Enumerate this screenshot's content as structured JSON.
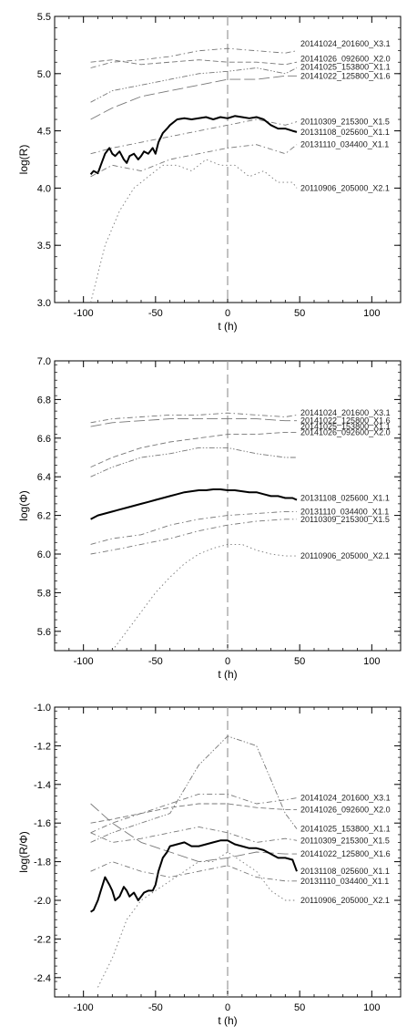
{
  "chart_data": [
    {
      "type": "line",
      "xlabel": "t (h)",
      "ylabel": "log(R)",
      "xlim": [
        -120,
        120
      ],
      "ylim": [
        3.0,
        5.5
      ],
      "xticks": [
        "-100",
        "-50",
        "0",
        "50",
        "100"
      ],
      "yticks": [
        "3.0",
        "3.5",
        "4.0",
        "4.5",
        "5.0",
        "5.5"
      ],
      "ytick_values": [
        3.0,
        3.5,
        4.0,
        4.5,
        5.0,
        5.5
      ],
      "series": [
        {
          "name": "20141024_201600_X3.1",
          "style": "dashdot",
          "label_y": 5.26,
          "x": [
            -95,
            -80,
            -60,
            -40,
            -20,
            0,
            20,
            40,
            48
          ],
          "y": [
            5.05,
            5.1,
            5.12,
            5.15,
            5.2,
            5.22,
            5.2,
            5.18,
            5.2
          ]
        },
        {
          "name": "20141026_092600_X2.0",
          "style": "dash",
          "label_y": 5.13,
          "x": [
            -95,
            -80,
            -60,
            -40,
            -20,
            0,
            20,
            40,
            48
          ],
          "y": [
            5.1,
            5.12,
            5.08,
            5.1,
            5.12,
            5.1,
            5.1,
            5.08,
            5.1
          ]
        },
        {
          "name": "20141025_153800_X1.1",
          "style": "dashdotdot",
          "label_y": 5.06,
          "x": [
            -95,
            -80,
            -60,
            -40,
            -20,
            0,
            20,
            40,
            48
          ],
          "y": [
            4.75,
            4.85,
            4.9,
            4.95,
            5.0,
            5.02,
            5.05,
            5.0,
            5.05
          ]
        },
        {
          "name": "20141022_125800_X1.6",
          "style": "longdash",
          "label_y": 4.98,
          "x": [
            -95,
            -80,
            -60,
            -40,
            -20,
            0,
            20,
            40,
            48
          ],
          "y": [
            4.6,
            4.7,
            4.8,
            4.85,
            4.9,
            4.95,
            4.95,
            4.98,
            4.98
          ]
        },
        {
          "name": "20110309_215300_X1.5",
          "style": "dashdot",
          "label_y": 4.58,
          "x": [
            -95,
            -80,
            -60,
            -40,
            -20,
            0,
            20,
            40,
            48
          ],
          "y": [
            4.3,
            4.35,
            4.4,
            4.45,
            4.5,
            4.55,
            4.6,
            4.55,
            4.58
          ]
        },
        {
          "name": "20131108_025600_X1.1",
          "style": "solid",
          "label_y": 4.49,
          "x": [
            -95,
            -93,
            -90,
            -88,
            -85,
            -82,
            -80,
            -78,
            -75,
            -72,
            -70,
            -68,
            -65,
            -62,
            -60,
            -58,
            -55,
            -52,
            -50,
            -48,
            -45,
            -42,
            -40,
            -35,
            -30,
            -25,
            -20,
            -15,
            -10,
            -5,
            0,
            5,
            10,
            15,
            20,
            25,
            30,
            35,
            40,
            45,
            48
          ],
          "y": [
            4.12,
            4.15,
            4.13,
            4.2,
            4.3,
            4.35,
            4.3,
            4.28,
            4.32,
            4.25,
            4.22,
            4.28,
            4.3,
            4.25,
            4.28,
            4.32,
            4.3,
            4.35,
            4.3,
            4.4,
            4.48,
            4.52,
            4.55,
            4.6,
            4.61,
            4.6,
            4.61,
            4.62,
            4.6,
            4.62,
            4.61,
            4.63,
            4.62,
            4.61,
            4.62,
            4.6,
            4.55,
            4.52,
            4.52,
            4.5,
            4.49
          ]
        },
        {
          "name": "20131110_034400_X1.1",
          "style": "dashdot",
          "label_y": 4.38,
          "x": [
            -95,
            -80,
            -60,
            -40,
            -20,
            0,
            20,
            40,
            48
          ],
          "y": [
            4.1,
            4.2,
            4.15,
            4.25,
            4.3,
            4.35,
            4.38,
            4.3,
            4.38
          ]
        },
        {
          "name": "20110906_205000_X2.1",
          "style": "dot",
          "label_y": 4.0,
          "x": [
            -95,
            -85,
            -75,
            -65,
            -55,
            -45,
            -35,
            -25,
            -15,
            -5,
            5,
            15,
            25,
            35,
            45,
            48
          ],
          "y": [
            3.0,
            3.5,
            3.8,
            4.0,
            4.1,
            4.2,
            4.2,
            4.15,
            4.25,
            4.2,
            4.2,
            4.1,
            4.15,
            4.05,
            4.05,
            4.0
          ]
        }
      ],
      "vline": 0
    },
    {
      "type": "line",
      "xlabel": "t (h)",
      "ylabel": "log(Φ)",
      "xlim": [
        -120,
        120
      ],
      "ylim": [
        5.5,
        7.0
      ],
      "xticks": [
        "-100",
        "-50",
        "0",
        "50",
        "100"
      ],
      "yticks": [
        "5.6",
        "5.8",
        "6.0",
        "6.2",
        "6.4",
        "6.6",
        "6.8",
        "7.0"
      ],
      "ytick_values": [
        5.6,
        5.8,
        6.0,
        6.2,
        6.4,
        6.6,
        6.8,
        7.0
      ],
      "series": [
        {
          "name": "20141024_201600_X3.1",
          "style": "dashdot",
          "label_y": 6.73,
          "x": [
            -95,
            -80,
            -60,
            -40,
            -20,
            0,
            20,
            40,
            48
          ],
          "y": [
            6.68,
            6.7,
            6.71,
            6.72,
            6.72,
            6.73,
            6.72,
            6.71,
            6.72
          ]
        },
        {
          "name": "20141022_125800_X1.6",
          "style": "longdash",
          "label_y": 6.69,
          "x": [
            -95,
            -80,
            -60,
            -40,
            -20,
            0,
            20,
            40,
            48
          ],
          "y": [
            6.66,
            6.68,
            6.69,
            6.7,
            6.7,
            6.7,
            6.7,
            6.69,
            6.69
          ]
        },
        {
          "name": "20141025_153800_X1.1",
          "style": "dashdotdot",
          "label_y": 6.66,
          "x": [
            -95,
            -80,
            -60,
            -40,
            -20,
            0,
            20,
            40,
            48
          ],
          "y": [
            6.4,
            6.45,
            6.5,
            6.52,
            6.55,
            6.55,
            6.52,
            6.5,
            6.5
          ]
        },
        {
          "name": "20141026_092600_X2.0",
          "style": "dash",
          "label_y": 6.63,
          "x": [
            -95,
            -80,
            -60,
            -40,
            -20,
            0,
            20,
            40,
            48
          ],
          "y": [
            6.45,
            6.5,
            6.55,
            6.58,
            6.6,
            6.62,
            6.62,
            6.63,
            6.63
          ]
        },
        {
          "name": "20131108_025600_X1.1",
          "style": "solid",
          "label_y": 6.29,
          "x": [
            -95,
            -90,
            -85,
            -80,
            -75,
            -70,
            -65,
            -60,
            -55,
            -50,
            -45,
            -40,
            -35,
            -30,
            -25,
            -20,
            -15,
            -10,
            -5,
            0,
            5,
            10,
            15,
            20,
            25,
            30,
            35,
            40,
            45,
            48
          ],
          "y": [
            6.18,
            6.2,
            6.21,
            6.22,
            6.23,
            6.24,
            6.25,
            6.26,
            6.27,
            6.28,
            6.29,
            6.3,
            6.31,
            6.32,
            6.325,
            6.33,
            6.33,
            6.335,
            6.335,
            6.33,
            6.33,
            6.325,
            6.32,
            6.32,
            6.31,
            6.3,
            6.3,
            6.29,
            6.29,
            6.28
          ]
        },
        {
          "name": "20131110_034400_X1.1",
          "style": "dashdot",
          "label_y": 6.22,
          "x": [
            -95,
            -80,
            -60,
            -40,
            -20,
            0,
            20,
            40,
            48
          ],
          "y": [
            6.05,
            6.08,
            6.1,
            6.15,
            6.18,
            6.2,
            6.21,
            6.22,
            6.22
          ]
        },
        {
          "name": "20110309_215300_X1.5",
          "style": "dashdot",
          "label_y": 6.18,
          "x": [
            -95,
            -80,
            -60,
            -40,
            -20,
            0,
            20,
            40,
            48
          ],
          "y": [
            6.0,
            6.02,
            6.05,
            6.08,
            6.12,
            6.15,
            6.17,
            6.18,
            6.18
          ]
        },
        {
          "name": "20110906_205000_X2.1",
          "style": "dot",
          "label_y": 5.99,
          "x": [
            -80,
            -70,
            -60,
            -50,
            -40,
            -30,
            -20,
            -10,
            0,
            10,
            20,
            30,
            40,
            48
          ],
          "y": [
            5.5,
            5.6,
            5.7,
            5.8,
            5.88,
            5.95,
            6.0,
            6.03,
            6.05,
            6.05,
            6.02,
            6.0,
            5.99,
            5.99
          ]
        }
      ],
      "vline": 0
    },
    {
      "type": "line",
      "xlabel": "t (h)",
      "ylabel": "log(R/Φ)",
      "xlim": [
        -120,
        120
      ],
      "ylim": [
        -2.5,
        -1.0
      ],
      "xticks": [
        "-100",
        "-50",
        "0",
        "50",
        "100"
      ],
      "yticks": [
        "-2.4",
        "-2.2",
        "-2.0",
        "-1.8",
        "-1.6",
        "-1.4",
        "-1.2",
        "-1.0"
      ],
      "ytick_values": [
        -2.4,
        -2.2,
        -2.0,
        -1.8,
        -1.6,
        -1.4,
        -1.2,
        -1.0
      ],
      "series": [
        {
          "name": "20141024_201600_X3.1",
          "style": "dashdot",
          "label_y": -1.47,
          "x": [
            -95,
            -80,
            -60,
            -40,
            -20,
            0,
            20,
            40,
            48
          ],
          "y": [
            -1.65,
            -1.6,
            -1.55,
            -1.5,
            -1.45,
            -1.45,
            -1.5,
            -1.48,
            -1.47
          ]
        },
        {
          "name": "20141026_092600_X2.0",
          "style": "dash",
          "label_y": -1.53,
          "x": [
            -95,
            -80,
            -60,
            -40,
            -20,
            0,
            20,
            40,
            48
          ],
          "y": [
            -1.6,
            -1.58,
            -1.55,
            -1.52,
            -1.5,
            -1.5,
            -1.52,
            -1.53,
            -1.53
          ]
        },
        {
          "name": "20141025_153800_X1.1",
          "style": "dashdotdot",
          "label_y": -1.63,
          "x": [
            -95,
            -80,
            -60,
            -40,
            -20,
            0,
            20,
            40,
            48
          ],
          "y": [
            -1.7,
            -1.65,
            -1.6,
            -1.55,
            -1.3,
            -1.15,
            -1.2,
            -1.55,
            -1.63
          ]
        },
        {
          "name": "20110309_215300_X1.5",
          "style": "dashdot",
          "label_y": -1.69,
          "x": [
            -95,
            -80,
            -60,
            -40,
            -20,
            0,
            20,
            40,
            48
          ],
          "y": [
            -1.65,
            -1.7,
            -1.68,
            -1.65,
            -1.62,
            -1.65,
            -1.7,
            -1.68,
            -1.69
          ]
        },
        {
          "name": "20141022_125800_X1.6",
          "style": "longdash",
          "label_y": -1.76,
          "x": [
            -95,
            -80,
            -60,
            -40,
            -20,
            0,
            20,
            40,
            48
          ],
          "y": [
            -1.5,
            -1.6,
            -1.7,
            -1.75,
            -1.8,
            -1.78,
            -1.75,
            -1.76,
            -1.76
          ]
        },
        {
          "name": "20131108_025600_X1.1",
          "style": "solid",
          "label_y": -1.85,
          "x": [
            -95,
            -93,
            -90,
            -88,
            -85,
            -82,
            -80,
            -78,
            -75,
            -72,
            -70,
            -68,
            -65,
            -62,
            -60,
            -58,
            -55,
            -52,
            -50,
            -48,
            -45,
            -42,
            -40,
            -35,
            -30,
            -25,
            -20,
            -15,
            -10,
            -5,
            0,
            5,
            10,
            15,
            20,
            25,
            30,
            35,
            40,
            45,
            48
          ],
          "y": [
            -2.06,
            -2.05,
            -2.0,
            -1.95,
            -1.88,
            -1.92,
            -1.95,
            -2.0,
            -1.98,
            -1.93,
            -1.95,
            -1.98,
            -1.96,
            -2.0,
            -1.98,
            -1.96,
            -1.95,
            -1.95,
            -1.92,
            -1.85,
            -1.78,
            -1.75,
            -1.72,
            -1.71,
            -1.7,
            -1.72,
            -1.72,
            -1.71,
            -1.7,
            -1.69,
            -1.69,
            -1.71,
            -1.72,
            -1.73,
            -1.73,
            -1.74,
            -1.76,
            -1.78,
            -1.78,
            -1.79,
            -1.85
          ]
        },
        {
          "name": "20131110_034400_X1.1",
          "style": "dashdot",
          "label_y": -1.9,
          "x": [
            -95,
            -80,
            -60,
            -40,
            -20,
            0,
            20,
            40,
            48
          ],
          "y": [
            -1.85,
            -1.8,
            -1.85,
            -1.88,
            -1.85,
            -1.82,
            -1.88,
            -1.9,
            -1.9
          ]
        },
        {
          "name": "20110906_205000_X2.1",
          "style": "dot",
          "label_y": -2.0,
          "x": [
            -90,
            -80,
            -70,
            -60,
            -50,
            -40,
            -30,
            -20,
            -10,
            0,
            10,
            20,
            30,
            40,
            48
          ],
          "y": [
            -2.45,
            -2.3,
            -2.1,
            -2.0,
            -1.95,
            -1.9,
            -1.85,
            -1.8,
            -1.8,
            -1.75,
            -1.8,
            -1.85,
            -1.95,
            -2.0,
            -2.0
          ]
        }
      ],
      "vline": 0
    }
  ]
}
